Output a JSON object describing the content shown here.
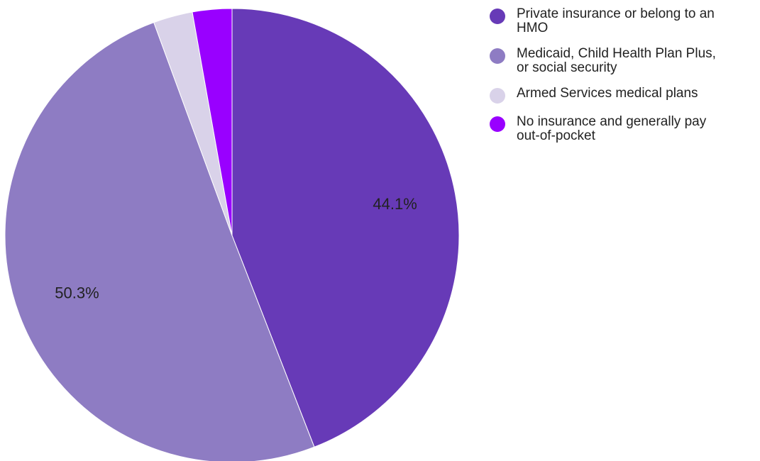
{
  "chart_data": {
    "type": "pie",
    "title": "",
    "legend_position": "right",
    "slices": [
      {
        "name": "Private insurance or belong to an HMO",
        "value": 44.1,
        "label": "44.1%",
        "color": "#673AB7"
      },
      {
        "name": "Medicaid, Child Health Plan Plus, or social security",
        "value": 50.3,
        "label": "50.3%",
        "color": "#8E7CC3"
      },
      {
        "name": "Armed Services medical plans",
        "value": 2.8,
        "label": "",
        "color": "#D9D2E9"
      },
      {
        "name": "No insurance and generally pay out-of-pocket",
        "value": 2.8,
        "label": "",
        "color": "#9900FF"
      }
    ]
  },
  "legend": {
    "items": [
      {
        "lines": [
          "Private insurance or belong to an",
          "HMO"
        ],
        "color": "#673AB7"
      },
      {
        "lines": [
          "Medicaid, Child Health Plan Plus,",
          "or social security"
        ],
        "color": "#8E7CC3"
      },
      {
        "lines": [
          "Armed Services medical plans"
        ],
        "color": "#D9D2E9"
      },
      {
        "lines": [
          "No insurance and generally pay",
          "out-of-pocket"
        ],
        "color": "#9900FF"
      }
    ]
  }
}
